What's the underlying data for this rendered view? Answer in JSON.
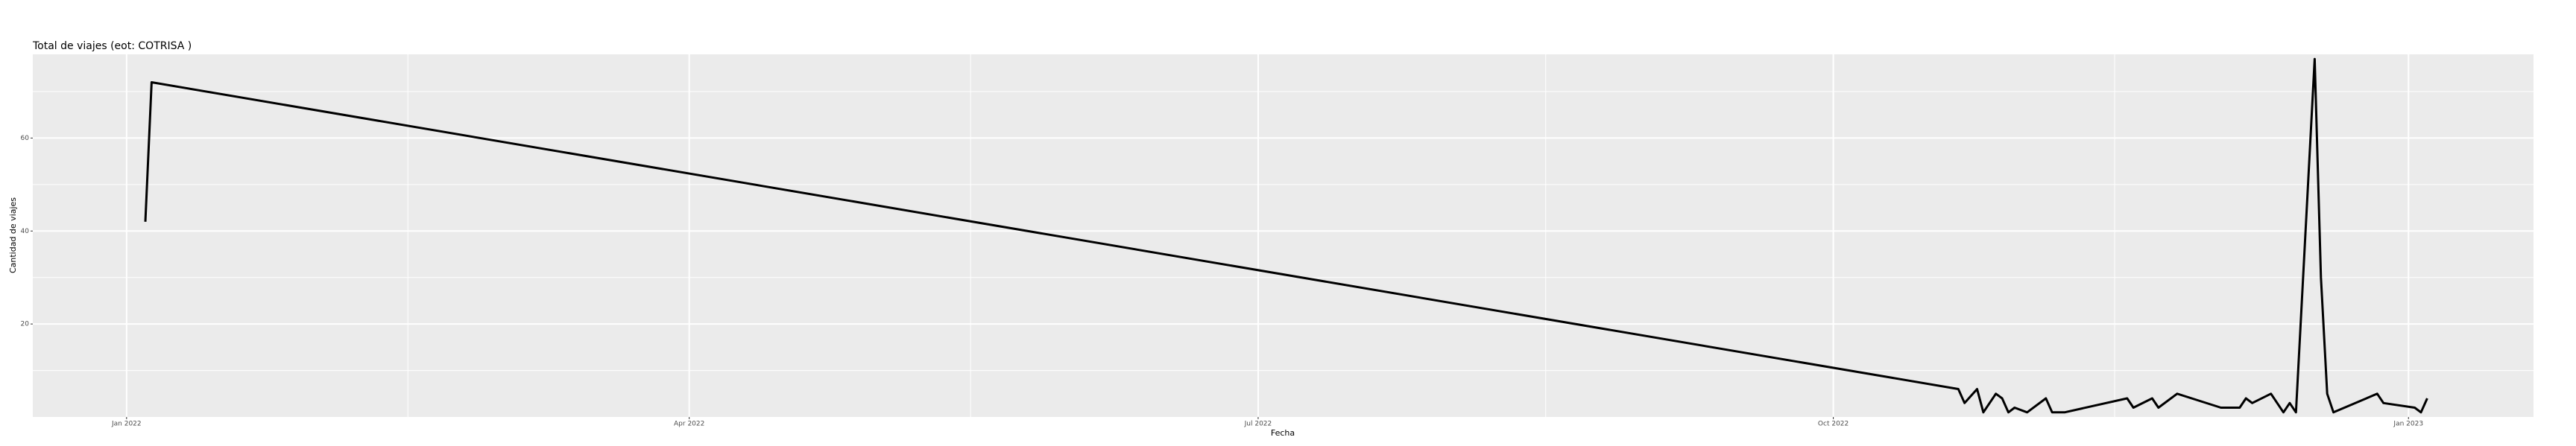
{
  "chart_data": {
    "type": "line",
    "title": "Total de viajes (eot: COTRISA )",
    "x_label": "Fecha",
    "y_label": "Cantidad de viajes",
    "x": [
      "2022-01-04",
      "2022-01-05",
      "2022-10-21",
      "2022-10-22",
      "2022-10-24",
      "2022-10-25",
      "2022-10-27",
      "2022-10-28",
      "2022-10-29",
      "2022-10-30",
      "2022-11-01",
      "2022-11-04",
      "2022-11-05",
      "2022-11-07",
      "2022-11-17",
      "2022-11-18",
      "2022-11-21",
      "2022-11-22",
      "2022-11-25",
      "2022-12-02",
      "2022-12-05",
      "2022-12-06",
      "2022-12-07",
      "2022-12-10",
      "2022-12-12",
      "2022-12-13",
      "2022-12-14",
      "2022-12-17",
      "2022-12-18",
      "2022-12-19",
      "2022-12-20",
      "2022-12-27",
      "2022-12-28",
      "2023-01-02",
      "2023-01-03",
      "2023-01-04"
    ],
    "series": [
      {
        "name": "Cantidad de viajes",
        "color": "#000000",
        "values": [
          42,
          72,
          6,
          3,
          6,
          1,
          5,
          4,
          1,
          2,
          1,
          4,
          1,
          1,
          4,
          2,
          4,
          2,
          5,
          2,
          2,
          4,
          3,
          5,
          1,
          3,
          1,
          77,
          30,
          5,
          1,
          5,
          3,
          2,
          1,
          4
        ]
      }
    ],
    "xlim": [
      "2021-12-17",
      "2023-01-21"
    ],
    "xticks": [
      {
        "value": "2022-01-01",
        "label": "Jan 2022"
      },
      {
        "value": "2022-04-01",
        "label": "Apr 2022"
      },
      {
        "value": "2022-07-01",
        "label": "Jul 2022"
      },
      {
        "value": "2022-10-01",
        "label": "Oct 2022"
      },
      {
        "value": "2023-01-01",
        "label": "Jan 2023"
      }
    ],
    "x_minor_ticks": [
      "2022-02-15",
      "2022-05-16",
      "2022-08-16",
      "2022-11-15"
    ],
    "ylim": [
      0,
      78
    ],
    "yticks": [
      20,
      40,
      60
    ],
    "y_minor_ticks": [
      10,
      30,
      50,
      70
    ],
    "grid": true,
    "panel_color": "#ebebeb"
  }
}
